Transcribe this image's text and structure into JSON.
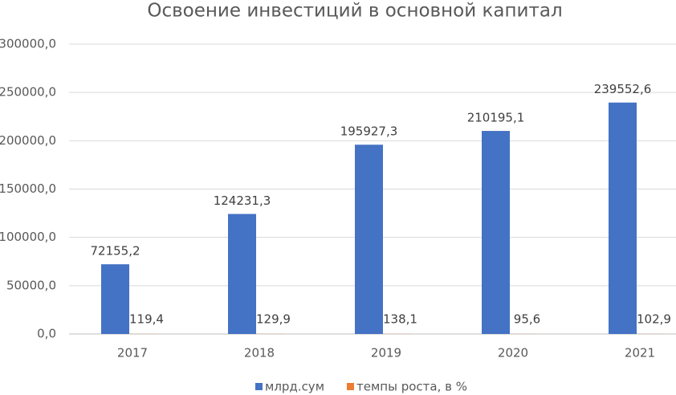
{
  "chart_data": {
    "type": "bar",
    "title": "Освоение инвестиций в основной капитал",
    "categories": [
      "2017",
      "2018",
      "2019",
      "2020",
      "2021"
    ],
    "series": [
      {
        "name": "млрд.сум",
        "color": "#4472c4",
        "values": [
          72155.2,
          124231.3,
          195927.3,
          210195.1,
          239552.6
        ],
        "value_labels": [
          "72155,2",
          "124231,3",
          "195927,3",
          "210195,1",
          "239552,6"
        ]
      },
      {
        "name": "темпы роста, в %",
        "color": "#ed7d31",
        "values": [
          119.4,
          129.9,
          138.1,
          95.6,
          102.9
        ],
        "value_labels": [
          "119,4",
          "129,9",
          "138,1",
          "95,6",
          "102,9"
        ]
      }
    ],
    "ylim": [
      0,
      300000
    ],
    "yticks": [
      {
        "value": 0,
        "label": "0,0"
      },
      {
        "value": 50000,
        "label": "50000,0"
      },
      {
        "value": 100000,
        "label": "100000,0"
      },
      {
        "value": 150000,
        "label": "150000,0"
      },
      {
        "value": 200000,
        "label": "200000,0"
      },
      {
        "value": 250000,
        "label": "250000,0"
      },
      {
        "value": 300000,
        "label": "300000,0"
      }
    ],
    "grid": true,
    "legend": "bottom"
  }
}
